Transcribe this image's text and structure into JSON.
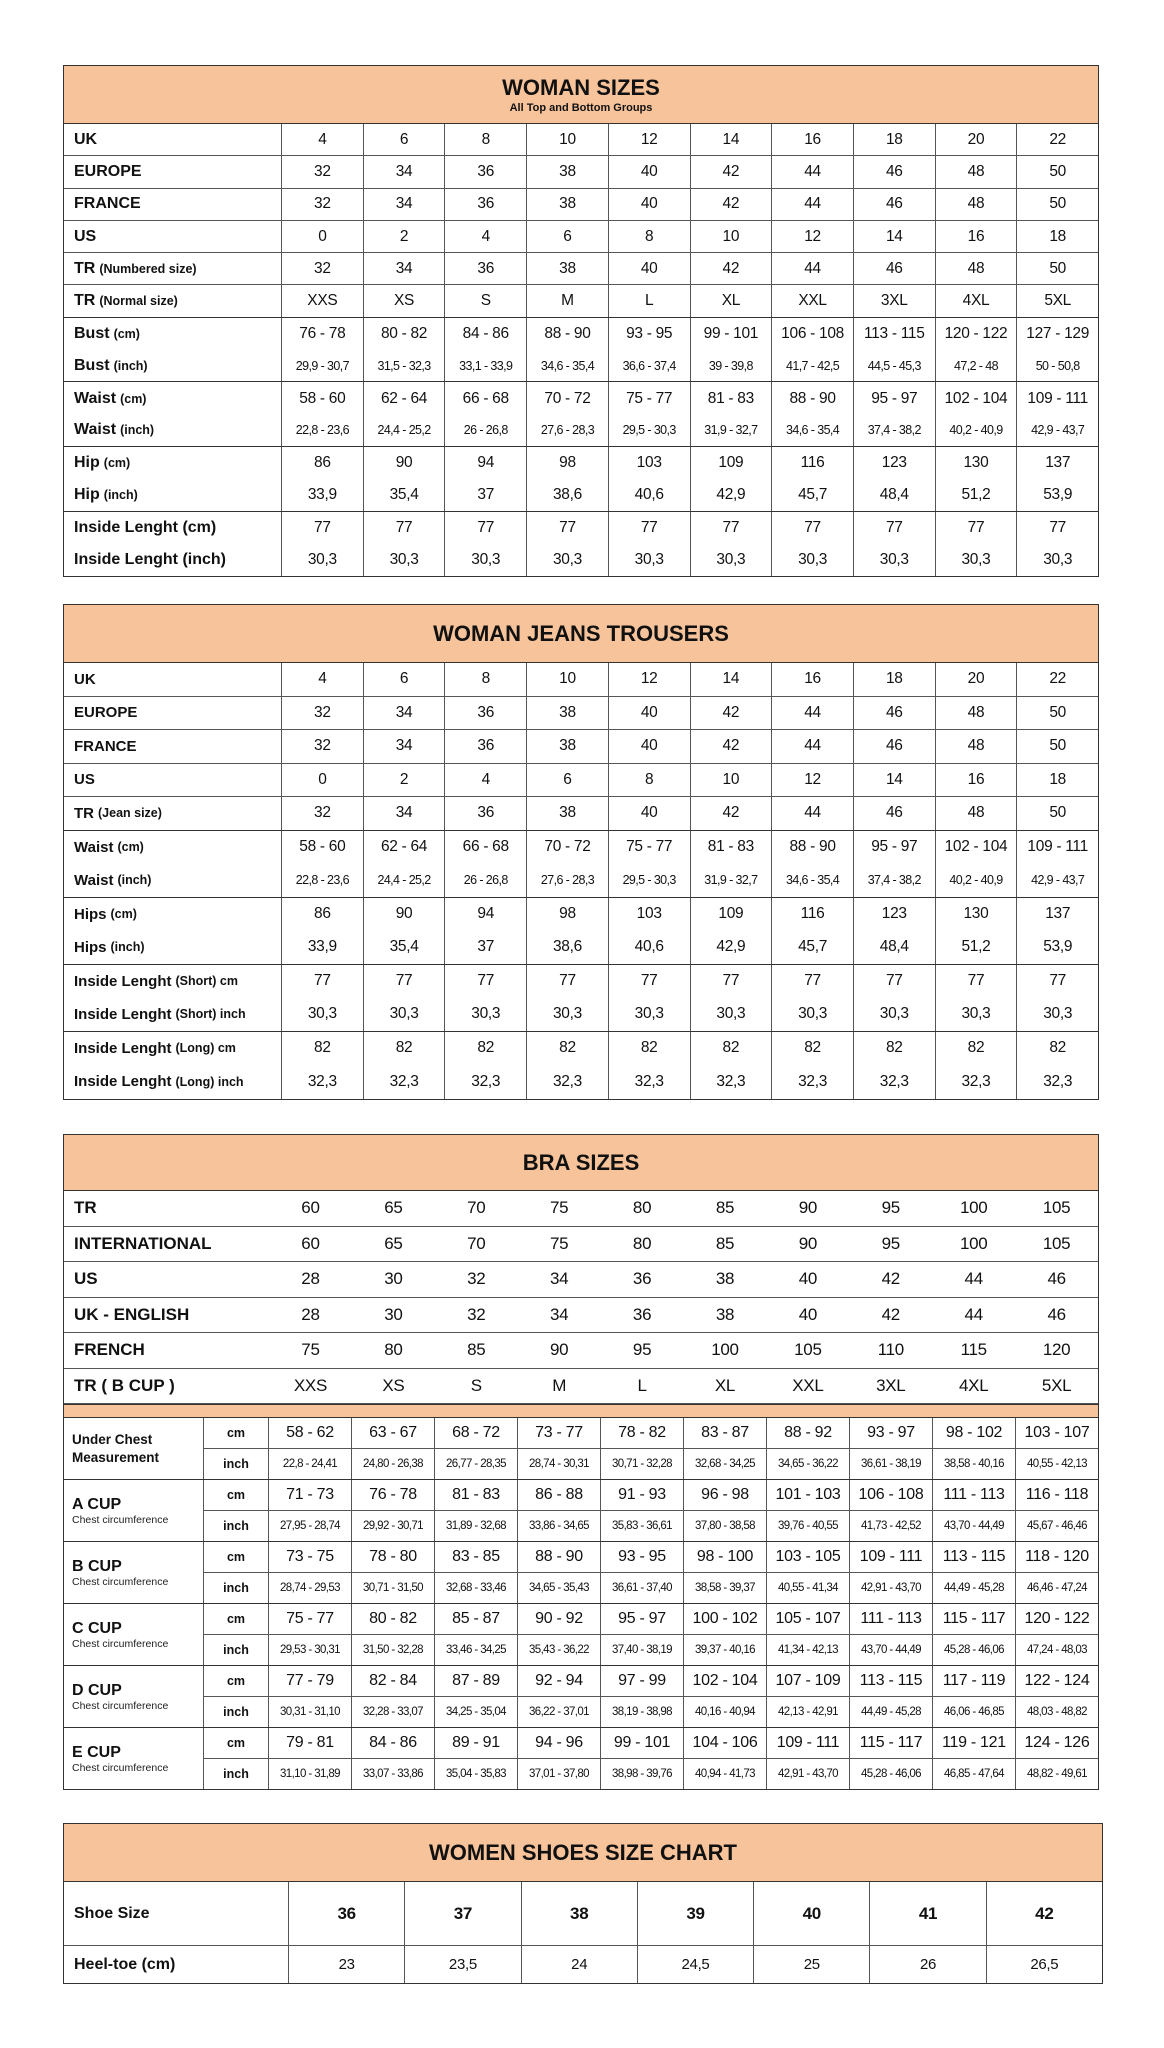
{
  "woman_sizes": {
    "title": "WOMAN SIZES",
    "subtitle": "All Top and Bottom Groups",
    "rows": [
      {
        "label": "UK",
        "unit": "",
        "values": [
          "4",
          "6",
          "8",
          "10",
          "12",
          "14",
          "16",
          "18",
          "20",
          "22"
        ]
      },
      {
        "label": "EUROPE",
        "unit": "",
        "values": [
          "32",
          "34",
          "36",
          "38",
          "40",
          "42",
          "44",
          "46",
          "48",
          "50"
        ]
      },
      {
        "label": "FRANCE",
        "unit": "",
        "values": [
          "32",
          "34",
          "36",
          "38",
          "40",
          "42",
          "44",
          "46",
          "48",
          "50"
        ]
      },
      {
        "label": "US",
        "unit": "",
        "values": [
          "0",
          "2",
          "4",
          "6",
          "8",
          "10",
          "12",
          "14",
          "16",
          "18"
        ]
      },
      {
        "label": "TR",
        "unit": "(Numbered size)",
        "values": [
          "32",
          "34",
          "36",
          "38",
          "40",
          "42",
          "44",
          "46",
          "48",
          "50"
        ]
      },
      {
        "label": "TR",
        "unit": "(Normal size)",
        "values": [
          "XXS",
          "XS",
          "S",
          "M",
          "L",
          "XL",
          "XXL",
          "3XL",
          "4XL",
          "5XL"
        ]
      },
      {
        "label": "Bust",
        "unit": "(cm)",
        "values": [
          "76 - 78",
          "80 - 82",
          "84 - 86",
          "88 - 90",
          "93 - 95",
          "99 - 101",
          "106 - 108",
          "113 - 115",
          "120 - 122",
          "127 - 129"
        ]
      },
      {
        "label": "Bust",
        "unit": "(inch)",
        "values": [
          "29,9 - 30,7",
          "31,5 - 32,3",
          "33,1 - 33,9",
          "34,6 - 35,4",
          "36,6 - 37,4",
          "39 - 39,8",
          "41,7 - 42,5",
          "44,5 - 45,3",
          "47,2 - 48",
          "50 - 50,8"
        ]
      },
      {
        "label": "Waist",
        "unit": "(cm)",
        "values": [
          "58 - 60",
          "62 - 64",
          "66 - 68",
          "70 - 72",
          "75 - 77",
          "81 - 83",
          "88 - 90",
          "95 - 97",
          "102 - 104",
          "109 - 111"
        ]
      },
      {
        "label": "Waist",
        "unit": "(inch)",
        "values": [
          "22,8 - 23,6",
          "24,4 - 25,2",
          "26 - 26,8",
          "27,6 - 28,3",
          "29,5 - 30,3",
          "31,9 - 32,7",
          "34,6 - 35,4",
          "37,4 - 38,2",
          "40,2 - 40,9",
          "42,9 - 43,7"
        ]
      },
      {
        "label": "Hip",
        "unit": "(cm)",
        "values": [
          "86",
          "90",
          "94",
          "98",
          "103",
          "109",
          "116",
          "123",
          "130",
          "137"
        ]
      },
      {
        "label": "Hip",
        "unit": "(inch)",
        "values": [
          "33,9",
          "35,4",
          "37",
          "38,6",
          "40,6",
          "42,9",
          "45,7",
          "48,4",
          "51,2",
          "53,9"
        ]
      },
      {
        "label": "Inside Lenght (cm)",
        "unit": "",
        "values": [
          "77",
          "77",
          "77",
          "77",
          "77",
          "77",
          "77",
          "77",
          "77",
          "77"
        ]
      },
      {
        "label": "Inside Lenght (inch)",
        "unit": "",
        "values": [
          "30,3",
          "30,3",
          "30,3",
          "30,3",
          "30,3",
          "30,3",
          "30,3",
          "30,3",
          "30,3",
          "30,3"
        ]
      }
    ]
  },
  "jeans": {
    "title": "WOMAN JEANS TROUSERS",
    "rows": [
      {
        "label": "UK",
        "unit": "",
        "values": [
          "4",
          "6",
          "8",
          "10",
          "12",
          "14",
          "16",
          "18",
          "20",
          "22"
        ]
      },
      {
        "label": "EUROPE",
        "unit": "",
        "values": [
          "32",
          "34",
          "36",
          "38",
          "40",
          "42",
          "44",
          "46",
          "48",
          "50"
        ]
      },
      {
        "label": "FRANCE",
        "unit": "",
        "values": [
          "32",
          "34",
          "36",
          "38",
          "40",
          "42",
          "44",
          "46",
          "48",
          "50"
        ]
      },
      {
        "label": "US",
        "unit": "",
        "values": [
          "0",
          "2",
          "4",
          "6",
          "8",
          "10",
          "12",
          "14",
          "16",
          "18"
        ]
      },
      {
        "label": "TR",
        "unit": "(Jean size)",
        "values": [
          "32",
          "34",
          "36",
          "38",
          "40",
          "42",
          "44",
          "46",
          "48",
          "50"
        ]
      },
      {
        "label": "Waist",
        "unit": "(cm)",
        "values": [
          "58 - 60",
          "62 - 64",
          "66 - 68",
          "70 - 72",
          "75 - 77",
          "81 - 83",
          "88 - 90",
          "95 - 97",
          "102 - 104",
          "109 - 111"
        ]
      },
      {
        "label": "Waist",
        "unit": "(inch)",
        "values": [
          "22,8 - 23,6",
          "24,4 - 25,2",
          "26 - 26,8",
          "27,6 - 28,3",
          "29,5 - 30,3",
          "31,9 - 32,7",
          "34,6 - 35,4",
          "37,4 - 38,2",
          "40,2 - 40,9",
          "42,9 - 43,7"
        ]
      },
      {
        "label": "Hips",
        "unit": "(cm)",
        "values": [
          "86",
          "90",
          "94",
          "98",
          "103",
          "109",
          "116",
          "123",
          "130",
          "137"
        ]
      },
      {
        "label": "Hips",
        "unit": "(inch)",
        "values": [
          "33,9",
          "35,4",
          "37",
          "38,6",
          "40,6",
          "42,9",
          "45,7",
          "48,4",
          "51,2",
          "53,9"
        ]
      },
      {
        "label": "Inside Lenght",
        "unit": "(Short) cm",
        "values": [
          "77",
          "77",
          "77",
          "77",
          "77",
          "77",
          "77",
          "77",
          "77",
          "77"
        ]
      },
      {
        "label": "Inside Lenght",
        "unit": "(Short) inch",
        "values": [
          "30,3",
          "30,3",
          "30,3",
          "30,3",
          "30,3",
          "30,3",
          "30,3",
          "30,3",
          "30,3",
          "30,3"
        ]
      },
      {
        "label": "Inside Lenght",
        "unit": "(Long) cm",
        "values": [
          "82",
          "82",
          "82",
          "82",
          "82",
          "82",
          "82",
          "82",
          "82",
          "82"
        ]
      },
      {
        "label": "Inside Lenght",
        "unit": "(Long) inch",
        "values": [
          "32,3",
          "32,3",
          "32,3",
          "32,3",
          "32,3",
          "32,3",
          "32,3",
          "32,3",
          "32,3",
          "32,3"
        ]
      }
    ]
  },
  "bra": {
    "title": "BRA SIZES",
    "rows": [
      {
        "label": "TR",
        "unit": "",
        "values": [
          "60",
          "65",
          "70",
          "75",
          "80",
          "85",
          "90",
          "95",
          "100",
          "105"
        ]
      },
      {
        "label": "INTERNATIONAL",
        "unit": "",
        "values": [
          "60",
          "65",
          "70",
          "75",
          "80",
          "85",
          "90",
          "95",
          "100",
          "105"
        ]
      },
      {
        "label": "US",
        "unit": "",
        "values": [
          "28",
          "30",
          "32",
          "34",
          "36",
          "38",
          "40",
          "42",
          "44",
          "46"
        ]
      },
      {
        "label": "UK - ENGLISH",
        "unit": "",
        "values": [
          "28",
          "30",
          "32",
          "34",
          "36",
          "38",
          "40",
          "42",
          "44",
          "46"
        ]
      },
      {
        "label": "FRENCH",
        "unit": "",
        "values": [
          "75",
          "80",
          "85",
          "90",
          "95",
          "100",
          "105",
          "110",
          "115",
          "120"
        ]
      },
      {
        "label": "TR ( B CUP )",
        "unit": "",
        "values": [
          "XXS",
          "XS",
          "S",
          "M",
          "L",
          "XL",
          "XXL",
          "3XL",
          "4XL",
          "5XL"
        ]
      }
    ],
    "cups": [
      {
        "name": "Under Chest Measurement",
        "desc": "",
        "cm_label": "cm",
        "inch_label": "inch",
        "cm": [
          "58 - 62",
          "63 - 67",
          "68 - 72",
          "73 - 77",
          "78 - 82",
          "83 - 87",
          "88 - 92",
          "93 - 97",
          "98 - 102",
          "103 - 107"
        ],
        "inch": [
          "22,8 - 24,41",
          "24,80 - 26,38",
          "26,77 - 28,35",
          "28,74 - 30,31",
          "30,71 - 32,28",
          "32,68 - 34,25",
          "34,65 - 36,22",
          "36,61 - 38,19",
          "38,58 - 40,16",
          "40,55 - 42,13"
        ]
      },
      {
        "name": "A CUP",
        "desc": "Chest circumference",
        "cm_label": "cm",
        "inch_label": "inch",
        "cm": [
          "71 - 73",
          "76 - 78",
          "81 - 83",
          "86 - 88",
          "91 - 93",
          "96 - 98",
          "101 - 103",
          "106 - 108",
          "111 - 113",
          "116 - 118"
        ],
        "inch": [
          "27,95 - 28,74",
          "29,92 - 30,71",
          "31,89 - 32,68",
          "33,86 - 34,65",
          "35,83 - 36,61",
          "37,80 - 38,58",
          "39,76 - 40,55",
          "41,73 - 42,52",
          "43,70 - 44,49",
          "45,67 - 46,46"
        ]
      },
      {
        "name": "B CUP",
        "desc": "Chest circumference",
        "cm_label": "cm",
        "inch_label": "inch",
        "cm": [
          "73 - 75",
          "78 - 80",
          "83 - 85",
          "88 - 90",
          "93 - 95",
          "98 - 100",
          "103 - 105",
          "109 - 111",
          "113 - 115",
          "118 - 120"
        ],
        "inch": [
          "28,74 - 29,53",
          "30,71 - 31,50",
          "32,68 - 33,46",
          "34,65 - 35,43",
          "36,61 - 37,40",
          "38,58 - 39,37",
          "40,55 - 41,34",
          "42,91 - 43,70",
          "44,49 - 45,28",
          "46,46 - 47,24"
        ]
      },
      {
        "name": "C CUP",
        "desc": "Chest circumference",
        "cm_label": "cm",
        "inch_label": "inch",
        "cm": [
          "75 - 77",
          "80 - 82",
          "85 - 87",
          "90 - 92",
          "95 - 97",
          "100 - 102",
          "105 - 107",
          "111 - 113",
          "115 - 117",
          "120 - 122"
        ],
        "inch": [
          "29,53 - 30,31",
          "31,50 - 32,28",
          "33,46 - 34,25",
          "35,43 - 36,22",
          "37,40 - 38,19",
          "39,37 - 40,16",
          "41,34 - 42,13",
          "43,70 - 44,49",
          "45,28 - 46,06",
          "47,24 - 48,03"
        ]
      },
      {
        "name": "D CUP",
        "desc": "Chest circumference",
        "cm_label": "cm",
        "inch_label": "inch",
        "cm": [
          "77 - 79",
          "82 - 84",
          "87 - 89",
          "92 - 94",
          "97 - 99",
          "102 - 104",
          "107 - 109",
          "113 - 115",
          "117 - 119",
          "122 - 124"
        ],
        "inch": [
          "30,31 - 31,10",
          "32,28 - 33,07",
          "34,25 - 35,04",
          "36,22 - 37,01",
          "38,19 - 38,98",
          "40,16 - 40,94",
          "42,13 - 42,91",
          "44,49 - 45,28",
          "46,06 - 46,85",
          "48,03 - 48,82"
        ]
      },
      {
        "name": "E CUP",
        "desc": "Chest circumference",
        "cm_label": "cm",
        "inch_label": "inch",
        "cm": [
          "79 - 81",
          "84 - 86",
          "89 - 91",
          "94 - 96",
          "99 - 101",
          "104 - 106",
          "109 - 111",
          "115 - 117",
          "119 - 121",
          "124 - 126"
        ],
        "inch": [
          "31,10 - 31,89",
          "33,07 - 33,86",
          "35,04 - 35,83",
          "37,01 - 37,80",
          "38,98 - 39,76",
          "40,94 - 41,73",
          "42,91 - 43,70",
          "45,28 - 46,06",
          "46,85 - 47,64",
          "48,82 - 49,61"
        ]
      }
    ]
  },
  "shoes": {
    "title": "WOMEN SHOES SIZE CHART",
    "rows": [
      {
        "label": "Shoe Size",
        "unit": "",
        "values": [
          "36",
          "37",
          "38",
          "39",
          "40",
          "41",
          "42"
        ]
      },
      {
        "label": "Heel-toe (cm)",
        "unit": "",
        "values": [
          "23",
          "23,5",
          "24",
          "24,5",
          "25",
          "26",
          "26,5"
        ]
      }
    ]
  },
  "colors": {
    "header_bg": "#f7c39a",
    "border": "#333333"
  }
}
